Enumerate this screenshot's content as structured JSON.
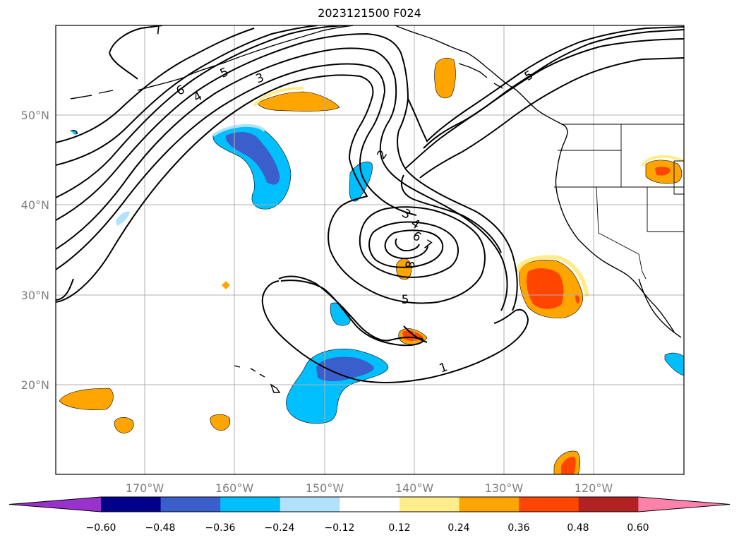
{
  "title": "2023121500 F024",
  "lat_labels": [
    "50°N",
    "40°N",
    "30°N",
    "20°N"
  ],
  "lon_labels": [
    "170°W",
    "160°W",
    "150°W",
    "140°W",
    "130°W",
    "120°W"
  ],
  "colorbar": {
    "ticks": [
      "−0.60",
      "−0.48",
      "−0.36",
      "−0.24",
      "−0.12",
      "0.12",
      "0.24",
      "0.36",
      "0.48",
      "0.60"
    ],
    "colors": [
      "#9932cc",
      "#00008b",
      "#3a5fcd",
      "#00bfff",
      "#b0e2ff",
      "#ffffff",
      "#ffec8b",
      "#ffa500",
      "#ff4500",
      "#b22222",
      "#ff82ab"
    ]
  },
  "contour_labels": [
    "7",
    "6",
    "5",
    "4",
    "3",
    "2",
    "3",
    "4",
    "6",
    "7",
    "8",
    "5",
    "1",
    "5"
  ]
}
